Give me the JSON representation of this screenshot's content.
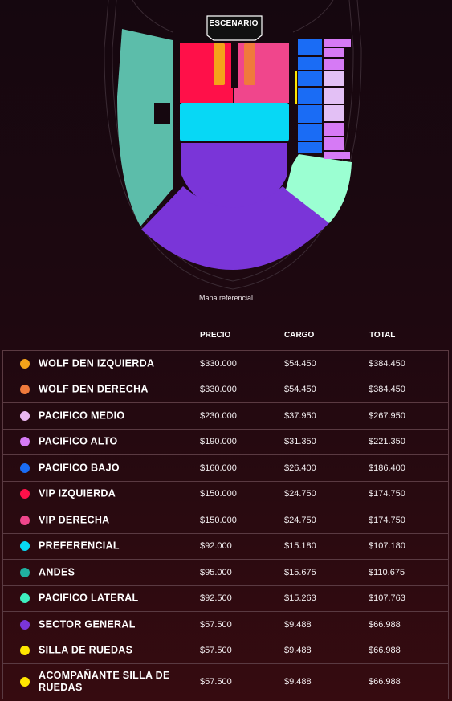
{
  "map": {
    "stage_label": "ESCENARIO",
    "caption": "Mapa referencial",
    "colors": {
      "wolf_izq": "#f5a31a",
      "wolf_der": "#f07a3c",
      "vip_izq": "#ff1049",
      "vip_der": "#f0468c",
      "preferencial": "#07d8f5",
      "andes": "#5cbdaa",
      "pacifico_lateral": "#9bffd2",
      "general": "#7a35d8",
      "pacifico_bajo": "#1a6cf5",
      "pacifico_medio": "#e3c0f5",
      "pacifico_alto": "#d67af5",
      "silla": "#ffe600"
    }
  },
  "table": {
    "headers": {
      "precio": "PRECIO",
      "cargo": "CARGO",
      "total": "TOTAL"
    },
    "rows": [
      {
        "name": "WOLF DEN IZQUIERDA",
        "color": "#f5a31a",
        "precio": "$330.000",
        "cargo": "$54.450",
        "total": "$384.450"
      },
      {
        "name": "WOLF DEN DERECHA",
        "color": "#f07a3c",
        "precio": "$330.000",
        "cargo": "$54.450",
        "total": "$384.450"
      },
      {
        "name": "PACIFICO MEDIO",
        "color": "#e9b8f0",
        "precio": "$230.000",
        "cargo": "$37.950",
        "total": "$267.950"
      },
      {
        "name": "PACIFICO ALTO",
        "color": "#d67af5",
        "precio": "$190.000",
        "cargo": "$31.350",
        "total": "$221.350"
      },
      {
        "name": "PACIFICO BAJO",
        "color": "#1a6cf5",
        "precio": "$160.000",
        "cargo": "$26.400",
        "total": "$186.400"
      },
      {
        "name": "VIP IZQUIERDA",
        "color": "#ff1049",
        "precio": "$150.000",
        "cargo": "$24.750",
        "total": "$174.750"
      },
      {
        "name": "VIP DERECHA",
        "color": "#f0468c",
        "precio": "$150.000",
        "cargo": "$24.750",
        "total": "$174.750"
      },
      {
        "name": "PREFERENCIAL",
        "color": "#07d8f5",
        "precio": "$92.000",
        "cargo": "$15.180",
        "total": "$107.180"
      },
      {
        "name": "ANDES",
        "color": "#20b0a0",
        "precio": "$95.000",
        "cargo": "$15.675",
        "total": "$110.675"
      },
      {
        "name": "PACIFICO LATERAL",
        "color": "#3ef0c0",
        "precio": "$92.500",
        "cargo": "$15.263",
        "total": "$107.763"
      },
      {
        "name": "SECTOR GENERAL",
        "color": "#7a35d8",
        "precio": "$57.500",
        "cargo": "$9.488",
        "total": "$66.988"
      },
      {
        "name": "SILLA DE RUEDAS",
        "color": "#ffe600",
        "precio": "$57.500",
        "cargo": "$9.488",
        "total": "$66.988"
      },
      {
        "name": "ACOMPAÑANTE SILLA DE RUEDAS",
        "color": "#ffe600",
        "precio": "$57.500",
        "cargo": "$9.488",
        "total": "$66.988"
      }
    ]
  }
}
